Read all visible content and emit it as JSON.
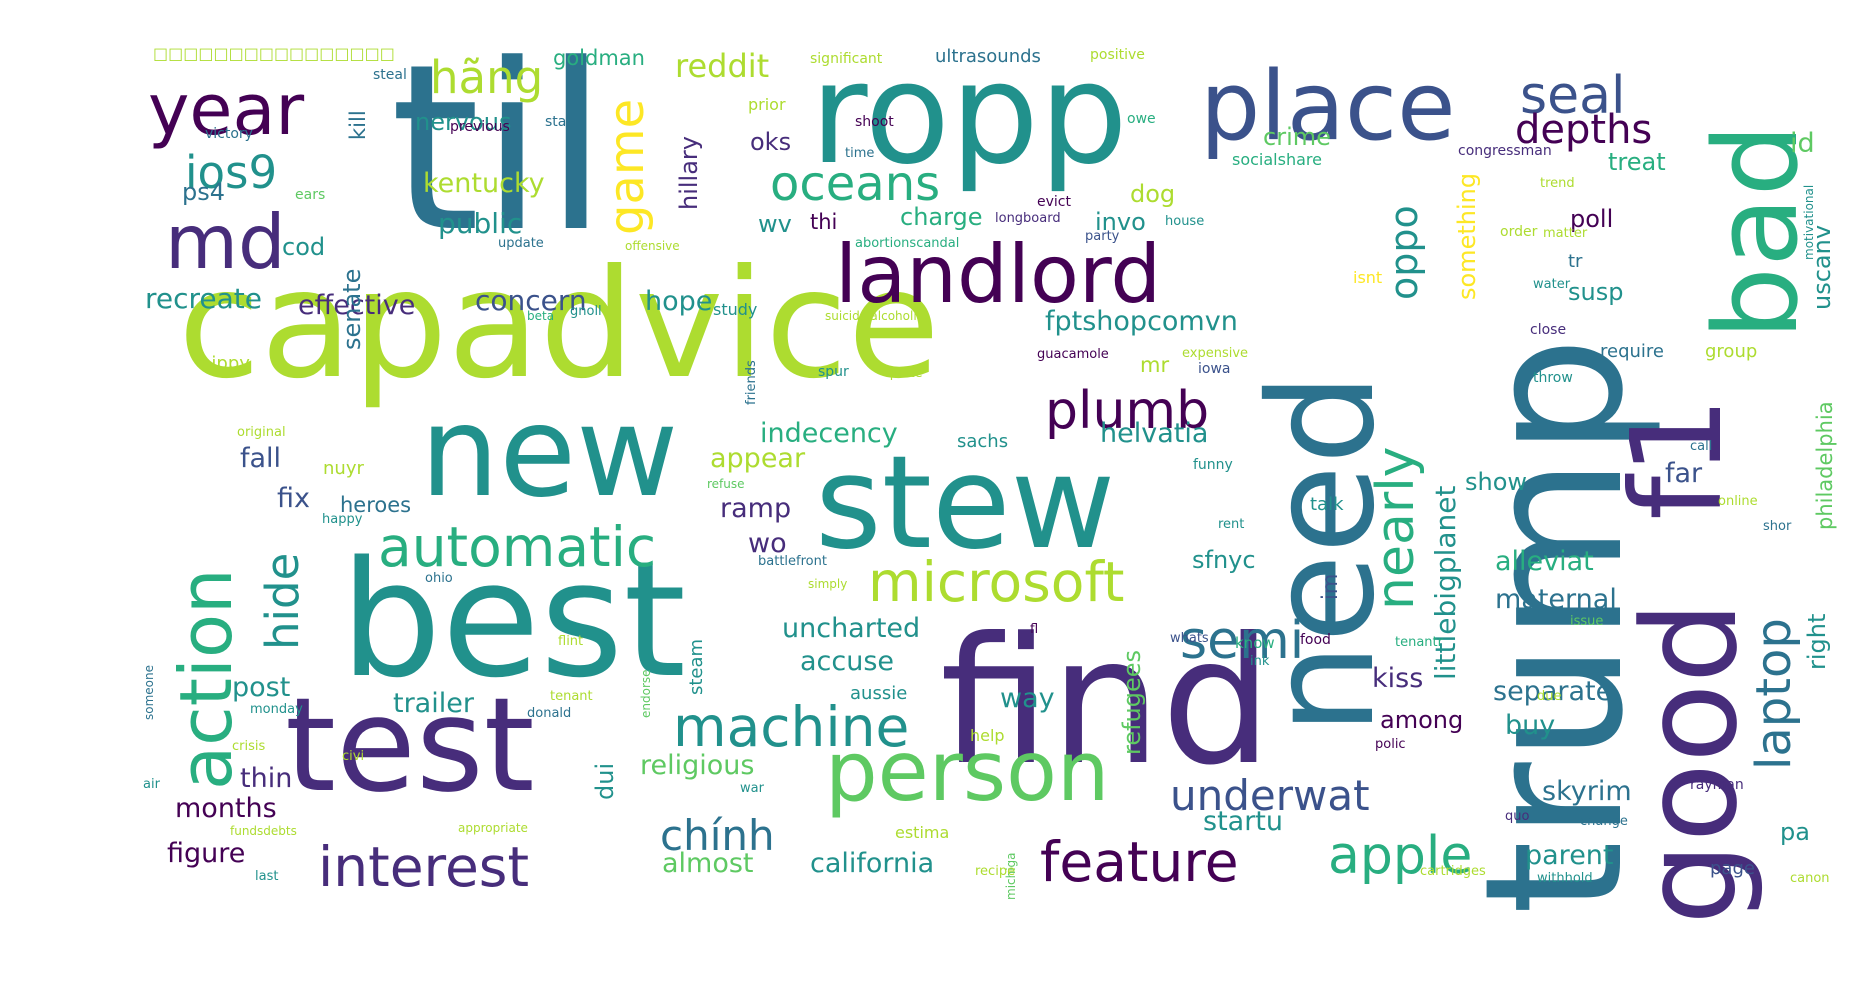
{
  "palette": {
    "dp": "#440154",
    "ip": "#472d7b",
    "db": "#3b528b",
    "bl": "#2c728e",
    "tl": "#21918c",
    "tg": "#28ae80",
    "gr": "#5ec962",
    "lm": "#addc30",
    "yw": "#fde725"
  },
  "words": [
    {
      "key": "til",
      "text": "til"
    },
    {
      "key": "capadvice",
      "text": "capadvice"
    },
    {
      "key": "best",
      "text": "best"
    },
    {
      "key": "find",
      "text": "find"
    },
    {
      "key": "ropp",
      "text": "ropp"
    },
    {
      "key": "trump",
      "text": "trump"
    },
    {
      "key": "need",
      "text": "need"
    },
    {
      "key": "new",
      "text": "new"
    },
    {
      "key": "stew",
      "text": "stew"
    },
    {
      "key": "test",
      "text": "test"
    },
    {
      "key": "good",
      "text": "good"
    },
    {
      "key": "f1",
      "text": "f1"
    },
    {
      "key": "bad",
      "text": "bad"
    },
    {
      "key": "place",
      "text": "place"
    },
    {
      "key": "person",
      "text": "person"
    },
    {
      "key": "landlord",
      "text": "landlord"
    },
    {
      "key": "year",
      "text": "year"
    },
    {
      "key": "md",
      "text": "md"
    },
    {
      "key": "action",
      "text": "action"
    },
    {
      "key": "machine",
      "text": "machine"
    },
    {
      "key": "automatic",
      "text": "automatic"
    },
    {
      "key": "interest",
      "text": "interest"
    },
    {
      "key": "microsoft",
      "text": "microsoft"
    },
    {
      "key": "feature",
      "text": "feature"
    },
    {
      "key": "apple",
      "text": "apple"
    },
    {
      "key": "oceans",
      "text": "oceans"
    },
    {
      "key": "seal",
      "text": "seal"
    },
    {
      "key": "nearly",
      "text": "nearly"
    },
    {
      "key": "semi",
      "text": "semi"
    },
    {
      "key": "plumb",
      "text": "plumb"
    },
    {
      "key": "game",
      "text": "game"
    },
    {
      "key": "hide",
      "text": "hide"
    },
    {
      "key": "underwat",
      "text": "underwat"
    },
    {
      "key": "chinh",
      "text": "chính"
    },
    {
      "key": "laptop",
      "text": "laptop"
    },
    {
      "key": "depths",
      "text": "depths"
    },
    {
      "key": "ios9",
      "text": "ios9"
    },
    {
      "key": "hang",
      "text": "hãng"
    },
    {
      "key": "oppo",
      "text": "oppo"
    },
    {
      "key": "reddit",
      "text": "reddit"
    },
    {
      "key": "kentucky",
      "text": "kentucky"
    },
    {
      "key": "public",
      "text": "public"
    },
    {
      "key": "recreate",
      "text": "recreate"
    },
    {
      "key": "effective",
      "text": "effective"
    },
    {
      "key": "concern",
      "text": "concern"
    },
    {
      "key": "hope",
      "text": "hope"
    },
    {
      "key": "fptshop",
      "text": "fptshopcomvn"
    },
    {
      "key": "indecency",
      "text": "indecency"
    },
    {
      "key": "helvatia",
      "text": "helvatia"
    },
    {
      "key": "littlebig",
      "text": "littlebigplanet"
    },
    {
      "key": "uncharted",
      "text": "uncharted"
    },
    {
      "key": "accuse",
      "text": "accuse"
    },
    {
      "key": "trailer",
      "text": "trailer"
    },
    {
      "key": "religious",
      "text": "religious"
    },
    {
      "key": "california",
      "text": "california"
    },
    {
      "key": "almost",
      "text": "almost"
    },
    {
      "key": "startu",
      "text": "startu"
    },
    {
      "key": "parent",
      "text": "parent"
    },
    {
      "key": "skyrim",
      "text": "skyrim"
    },
    {
      "key": "separate",
      "text": "separate"
    },
    {
      "key": "maternal",
      "text": "maternal"
    },
    {
      "key": "alleviat",
      "text": "alleviat"
    },
    {
      "key": "refugees",
      "text": "refugees"
    },
    {
      "key": "sfnyc",
      "text": "sfnyc"
    },
    {
      "key": "kiss",
      "text": "kiss"
    },
    {
      "key": "among",
      "text": "among"
    },
    {
      "key": "buy",
      "text": "buy"
    },
    {
      "key": "way",
      "text": "way"
    },
    {
      "key": "months",
      "text": "months"
    },
    {
      "key": "figure",
      "text": "figure"
    },
    {
      "key": "thin",
      "text": "thin"
    },
    {
      "key": "post",
      "text": "post"
    },
    {
      "key": "fix",
      "text": "fix"
    },
    {
      "key": "fall",
      "text": "fall"
    },
    {
      "key": "heroes",
      "text": "heroes"
    },
    {
      "key": "appear",
      "text": "appear"
    },
    {
      "key": "ramp",
      "text": "ramp"
    },
    {
      "key": "wo",
      "text": "wo"
    },
    {
      "key": "dui",
      "text": "dui"
    },
    {
      "key": "steam",
      "text": "steam"
    },
    {
      "key": "nervous",
      "text": "nervous"
    },
    {
      "key": "goldman",
      "text": "goldman"
    },
    {
      "key": "hillary",
      "text": "hillary"
    },
    {
      "key": "oks",
      "text": "oks"
    },
    {
      "key": "wv",
      "text": "wv"
    },
    {
      "key": "thi",
      "text": "thi"
    },
    {
      "key": "charge",
      "text": "charge"
    },
    {
      "key": "invo",
      "text": "invo"
    },
    {
      "key": "dog",
      "text": "dog"
    },
    {
      "key": "crime",
      "text": "crime"
    },
    {
      "key": "something",
      "text": "something"
    },
    {
      "key": "treat",
      "text": "treat"
    },
    {
      "key": "poll",
      "text": "poll"
    },
    {
      "key": "uscanv",
      "text": "uscanv"
    },
    {
      "key": "susp",
      "text": "susp"
    },
    {
      "key": "id",
      "text": "id"
    },
    {
      "key": "philadelphia",
      "text": "philadelphia"
    },
    {
      "key": "right",
      "text": "right"
    },
    {
      "key": "far",
      "text": "far"
    },
    {
      "key": "show",
      "text": "show"
    },
    {
      "key": "pa",
      "text": "pa"
    },
    {
      "key": "page",
      "text": "page"
    },
    {
      "key": "require",
      "text": "require"
    },
    {
      "key": "group",
      "text": "group"
    },
    {
      "key": "im",
      "text": "im"
    },
    {
      "key": "mr",
      "text": "mr"
    },
    {
      "key": "talk",
      "text": "talk"
    },
    {
      "key": "senate",
      "text": "senate"
    },
    {
      "key": "kill",
      "text": "kill"
    },
    {
      "key": "cod",
      "text": "cod"
    },
    {
      "key": "ps4",
      "text": "ps4"
    },
    {
      "key": "sachs",
      "text": "sachs"
    },
    {
      "key": "nuyr",
      "text": "nuyr"
    },
    {
      "key": "ultrasounds",
      "text": "ultrasounds"
    },
    {
      "key": "socialshare",
      "text": "socialshare"
    },
    {
      "key": "aussie",
      "text": "aussie"
    },
    {
      "key": "study",
      "text": "study"
    },
    {
      "key": "ears",
      "text": "ears"
    },
    {
      "key": "victory",
      "text": "victory"
    },
    {
      "key": "previous",
      "text": "previous"
    },
    {
      "key": "star",
      "text": "star"
    },
    {
      "key": "steal",
      "text": "steal"
    },
    {
      "key": "significant",
      "text": "significant"
    },
    {
      "key": "positive",
      "text": "positive"
    },
    {
      "key": "prior",
      "text": "prior"
    },
    {
      "key": "shoot",
      "text": "shoot"
    },
    {
      "key": "time",
      "text": "time"
    },
    {
      "key": "owe",
      "text": "owe"
    },
    {
      "key": "congressman",
      "text": "congressman"
    },
    {
      "key": "trend",
      "text": "trend"
    },
    {
      "key": "evict",
      "text": "evict"
    },
    {
      "key": "longboard",
      "text": "longboard"
    },
    {
      "key": "house",
      "text": "house"
    },
    {
      "key": "abortion",
      "text": "abortionscandal"
    },
    {
      "key": "party",
      "text": "party"
    },
    {
      "key": "matter",
      "text": "matter"
    },
    {
      "key": "order",
      "text": "order"
    },
    {
      "key": "motivational",
      "text": "motivational"
    },
    {
      "key": "tr",
      "text": "tr"
    },
    {
      "key": "isnt",
      "text": "isnt"
    },
    {
      "key": "update",
      "text": "update"
    },
    {
      "key": "offensive",
      "text": "offensive"
    },
    {
      "key": "beta",
      "text": "beta"
    },
    {
      "key": "gnoll",
      "text": "gnoll"
    },
    {
      "key": "suicidal",
      "text": "suicidalalcoholic"
    },
    {
      "key": "water",
      "text": "water"
    },
    {
      "key": "close",
      "text": "close"
    },
    {
      "key": "throw",
      "text": "throw"
    },
    {
      "key": "hippy",
      "text": "hippy"
    },
    {
      "key": "friends",
      "text": "friends"
    },
    {
      "key": "spur",
      "text": "spur"
    },
    {
      "key": "quote",
      "text": "quote"
    },
    {
      "key": "guacamole",
      "text": "guacamole"
    },
    {
      "key": "expensive",
      "text": "expensive"
    },
    {
      "key": "iowa",
      "text": "iowa"
    },
    {
      "key": "original",
      "text": "original"
    },
    {
      "key": "call",
      "text": "call"
    },
    {
      "key": "funny",
      "text": "funny"
    },
    {
      "key": "refuse",
      "text": "refuse"
    },
    {
      "key": "online",
      "text": "online"
    },
    {
      "key": "shor",
      "text": "shor"
    },
    {
      "key": "rent",
      "text": "rent"
    },
    {
      "key": "happy",
      "text": "happy"
    },
    {
      "key": "battlefront",
      "text": "battlefront"
    },
    {
      "key": "simply",
      "text": "simply"
    },
    {
      "key": "ohio",
      "text": "ohio"
    },
    {
      "key": "fl",
      "text": "fl"
    },
    {
      "key": "issue",
      "text": "issue"
    },
    {
      "key": "flint",
      "text": "flint"
    },
    {
      "key": "whats",
      "text": "whats"
    },
    {
      "key": "know",
      "text": "know"
    },
    {
      "key": "food",
      "text": "food"
    },
    {
      "key": "tenantr",
      "text": "tenantr"
    },
    {
      "key": "ink",
      "text": "ink"
    },
    {
      "key": "someone",
      "text": "someone"
    },
    {
      "key": "endorse",
      "text": "endorse"
    },
    {
      "key": "tenant",
      "text": "tenant"
    },
    {
      "key": "monday",
      "text": "monday"
    },
    {
      "key": "donald",
      "text": "donald"
    },
    {
      "key": "due",
      "text": "due"
    },
    {
      "key": "crisis",
      "text": "crisis"
    },
    {
      "key": "civi",
      "text": "civi"
    },
    {
      "key": "help",
      "text": "help"
    },
    {
      "key": "polic",
      "text": "polic"
    },
    {
      "key": "air",
      "text": "air"
    },
    {
      "key": "war",
      "text": "war"
    },
    {
      "key": "rayman",
      "text": "rayman"
    },
    {
      "key": "fundsdebts",
      "text": "fundsdebts"
    },
    {
      "key": "appropriate",
      "text": "appropriate"
    },
    {
      "key": "estima",
      "text": "estima"
    },
    {
      "key": "quo",
      "text": "quo"
    },
    {
      "key": "change",
      "text": "change"
    },
    {
      "key": "michiga",
      "text": "michiga"
    },
    {
      "key": "last",
      "text": "last"
    },
    {
      "key": "recipe",
      "text": "recipe"
    },
    {
      "key": "cartridges",
      "text": "cartridges"
    },
    {
      "key": "withhold",
      "text": "withhold"
    },
    {
      "key": "canon",
      "text": "canon"
    },
    {
      "key": "tofu",
      "text": "□□□□□□□□□□□□□□□□"
    }
  ]
}
